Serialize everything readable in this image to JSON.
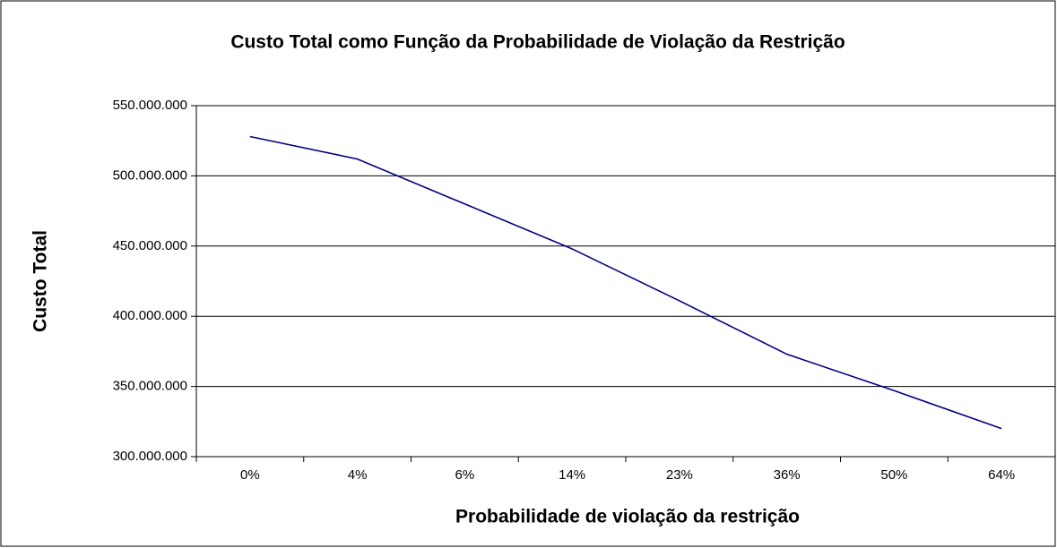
{
  "chart_data": {
    "type": "line",
    "title": "Custo Total como Função da Probabilidade de Violação da Restrição",
    "x_label": "Probabilidade de violação da restrição",
    "y_label": "Custo Total",
    "categories": [
      "0%",
      "4%",
      "6%",
      "14%",
      "23%",
      "36%",
      "50%",
      "64%"
    ],
    "series": [
      {
        "color": "#000080",
        "values": [
          528000000,
          512000000,
          480000000,
          448000000,
          411000000,
          373000000,
          347000000,
          320000000
        ]
      }
    ],
    "ylim": [
      300000000,
      550000000
    ],
    "yticks": [
      {
        "value": 300000000,
        "label": "300.000.000"
      },
      {
        "value": 350000000,
        "label": "350.000.000"
      },
      {
        "value": 400000000,
        "label": "400.000.000"
      },
      {
        "value": 450000000,
        "label": "450.000.000"
      },
      {
        "value": 500000000,
        "label": "500.000.000"
      },
      {
        "value": 550000000,
        "label": "550.000.000"
      }
    ],
    "grid": true
  }
}
